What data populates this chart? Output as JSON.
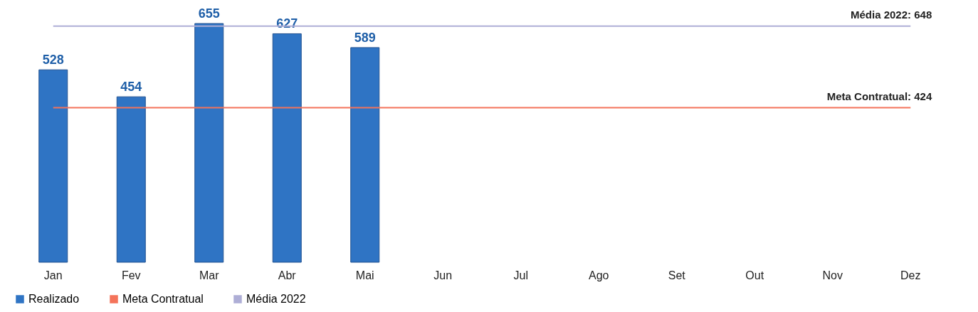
{
  "chart_data": {
    "type": "bar",
    "categories": [
      "Jan",
      "Fev",
      "Mar",
      "Abr",
      "Mai",
      "Jun",
      "Jul",
      "Ago",
      "Set",
      "Out",
      "Nov",
      "Dez"
    ],
    "series": [
      {
        "name": "Realizado",
        "color": "#2f74c4",
        "values": [
          528,
          454,
          655,
          627,
          589,
          null,
          null,
          null,
          null,
          null,
          null,
          null
        ],
        "value_labels": [
          "528",
          "454",
          "655",
          "627",
          "589",
          null,
          null,
          null,
          null,
          null,
          null,
          null
        ]
      },
      {
        "name": "Meta Contratual",
        "type": "line",
        "color": "#f4735a",
        "values": [
          424,
          424,
          424,
          424,
          424,
          424,
          424,
          424,
          424,
          424,
          424,
          424
        ]
      },
      {
        "name": "Média 2022",
        "type": "line",
        "color": "#aeaed6",
        "values": [
          648,
          648,
          648,
          648,
          648,
          648,
          648,
          648,
          648,
          648,
          648,
          648
        ]
      }
    ],
    "annotations": [
      {
        "text": "Média 2022: 648",
        "x": "Dez",
        "y": 648
      },
      {
        "text": "Meta Contratual: 424",
        "x": "Dez",
        "y": 424
      }
    ],
    "legend": "bottom"
  }
}
